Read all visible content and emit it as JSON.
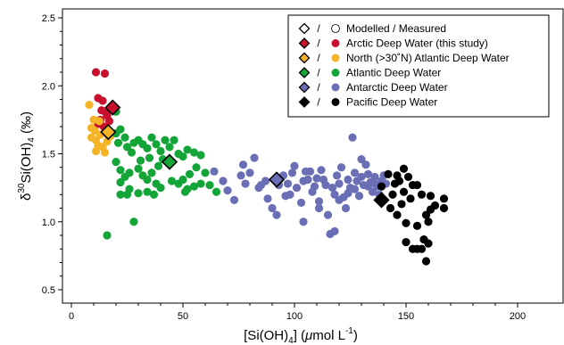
{
  "chart_data": {
    "type": "scatter",
    "xlabel": {
      "prefix": "[Si(OH)",
      "sub": "4",
      "mid": "] (",
      "italic": "μ",
      "unit": "mol L",
      "sup": "-1",
      "suffix": ")"
    },
    "ylabel": {
      "sup": "30",
      "main": "Si(OH)",
      "sub": "4",
      "suffix": " (‰)",
      "delta": "δ"
    },
    "xlim": [
      0,
      220
    ],
    "ylim": [
      0.45,
      2.55
    ],
    "x_ticks": [
      0,
      50,
      100,
      150,
      200
    ],
    "x_tick_labels": [
      "0",
      "50",
      "100",
      "150",
      "200"
    ],
    "y_ticks": [
      0.5,
      1.0,
      1.5,
      2.0,
      2.5
    ],
    "y_tick_labels": [
      "0.5",
      "1.0",
      "1.5",
      "2.0",
      "2.5"
    ],
    "grid": false,
    "legend_position": "top-right",
    "legend_header": {
      "sep": "/",
      "text": "Modelled / Measured"
    },
    "series": [
      {
        "name": "Arctic Deep Water (this study)",
        "color": "#c8102e",
        "modelled": [
          [
            18.5,
            1.84
          ]
        ],
        "measured": [
          [
            11,
            2.1
          ],
          [
            15,
            2.09
          ],
          [
            12,
            1.91
          ],
          [
            14,
            1.89
          ],
          [
            15.5,
            1.8
          ],
          [
            13,
            1.75
          ],
          [
            16,
            1.78
          ],
          [
            12,
            1.72
          ],
          [
            14.5,
            1.7
          ],
          [
            17,
            1.74
          ],
          [
            13.5,
            1.82
          ]
        ]
      },
      {
        "name": "North (>30˚N) Atlantic Deep Water",
        "color": "#f5b427",
        "modelled": [
          [
            16.5,
            1.66
          ]
        ],
        "measured": [
          [
            8,
            1.86
          ],
          [
            10,
            1.75
          ],
          [
            9,
            1.69
          ],
          [
            9,
            1.62
          ],
          [
            11,
            1.6
          ],
          [
            12,
            1.56
          ],
          [
            14,
            1.55
          ],
          [
            16,
            1.59
          ],
          [
            10.5,
            1.67
          ],
          [
            13,
            1.64
          ],
          [
            15,
            1.51
          ],
          [
            11,
            1.52
          ],
          [
            17.5,
            1.63
          ],
          [
            12.5,
            1.74
          ]
        ]
      },
      {
        "name": "Atlantic Deep Water",
        "color": "#14a538",
        "modelled": [
          [
            44,
            1.44
          ]
        ],
        "measured": [
          [
            16,
            0.9
          ],
          [
            20,
            1.81
          ],
          [
            22,
            1.68
          ],
          [
            20,
            1.65
          ],
          [
            21,
            1.58
          ],
          [
            24,
            1.62
          ],
          [
            25,
            1.55
          ],
          [
            27,
            1.51
          ],
          [
            28,
            1.58
          ],
          [
            30,
            1.6
          ],
          [
            32,
            1.57
          ],
          [
            34,
            1.54
          ],
          [
            36,
            1.62
          ],
          [
            38,
            1.57
          ],
          [
            40,
            1.52
          ],
          [
            42,
            1.6
          ],
          [
            44,
            1.55
          ],
          [
            46,
            1.6
          ],
          [
            48,
            1.5
          ],
          [
            50,
            1.48
          ],
          [
            52,
            1.53
          ],
          [
            55,
            1.51
          ],
          [
            58,
            1.49
          ],
          [
            20,
            1.44
          ],
          [
            22,
            1.38
          ],
          [
            24,
            1.33
          ],
          [
            26,
            1.36
          ],
          [
            30,
            1.39
          ],
          [
            32,
            1.34
          ],
          [
            34,
            1.31
          ],
          [
            36,
            1.36
          ],
          [
            38,
            1.28
          ],
          [
            40,
            1.25
          ],
          [
            45,
            1.3
          ],
          [
            48,
            1.28
          ],
          [
            50,
            1.31
          ],
          [
            52,
            1.24
          ],
          [
            55,
            1.26
          ],
          [
            58,
            1.28
          ],
          [
            62,
            1.27
          ],
          [
            65,
            1.22
          ],
          [
            22,
            1.29
          ],
          [
            26,
            1.24
          ],
          [
            30,
            1.21
          ],
          [
            34,
            1.22
          ],
          [
            37,
            1.2
          ],
          [
            22,
            1.2
          ],
          [
            25,
            1.2
          ],
          [
            28,
            1.0
          ],
          [
            31,
            1.45
          ],
          [
            35,
            1.47
          ],
          [
            39,
            1.41
          ],
          [
            41,
            1.46
          ],
          [
            51,
            1.22
          ],
          [
            56,
            1.4
          ],
          [
            60,
            1.36
          ],
          [
            53,
            1.35
          ]
        ]
      },
      {
        "name": "Antarctic Deep Water",
        "color": "#6a6fb5",
        "modelled": [
          [
            92,
            1.31
          ]
        ],
        "measured": [
          [
            64,
            1.37
          ],
          [
            68,
            1.3
          ],
          [
            70,
            1.23
          ],
          [
            73,
            1.16
          ],
          [
            77,
            1.42
          ],
          [
            80,
            1.36
          ],
          [
            82,
            1.47
          ],
          [
            85,
            1.27
          ],
          [
            87,
            1.3
          ],
          [
            88,
            1.17
          ],
          [
            90,
            1.1
          ],
          [
            92,
            1.05
          ],
          [
            95,
            1.34
          ],
          [
            97,
            1.28
          ],
          [
            98,
            1.2
          ],
          [
            100,
            1.41
          ],
          [
            101,
            1.25
          ],
          [
            103,
            1.14
          ],
          [
            105,
            1.37
          ],
          [
            106,
            1.31
          ],
          [
            108,
            1.22
          ],
          [
            110,
            1.32
          ],
          [
            111,
            1.15
          ],
          [
            112,
            1.38
          ],
          [
            114,
            1.27
          ],
          [
            115,
            1.05
          ],
          [
            116,
            0.91
          ],
          [
            118,
            1.2
          ],
          [
            119,
            1.34
          ],
          [
            120,
            1.28
          ],
          [
            121,
            1.4
          ],
          [
            122,
            1.18
          ],
          [
            123,
            1.1
          ],
          [
            124,
            1.31
          ],
          [
            125,
            1.25
          ],
          [
            126,
            1.62
          ],
          [
            127,
            1.36
          ],
          [
            128,
            1.3
          ],
          [
            129,
            1.19
          ],
          [
            130,
            1.46
          ],
          [
            131,
            1.27
          ],
          [
            132,
            1.42
          ],
          [
            133,
            1.35
          ],
          [
            134,
            1.29
          ],
          [
            135,
            1.22
          ],
          [
            136,
            1.33
          ],
          [
            137,
            1.26
          ],
          [
            138,
            1.2
          ],
          [
            139,
            1.3
          ],
          [
            140,
            1.34
          ],
          [
            141,
            1.28
          ],
          [
            76,
            1.34
          ],
          [
            78,
            1.28
          ],
          [
            84,
            1.25
          ],
          [
            93,
            1.27
          ],
          [
            99,
            1.36
          ],
          [
            104,
            1.3
          ],
          [
            107,
            1.37
          ],
          [
            109,
            1.26
          ],
          [
            113,
            1.31
          ],
          [
            117,
            1.25
          ],
          [
            120,
            1.16
          ],
          [
            124,
            1.21
          ],
          [
            127,
            1.24
          ],
          [
            130,
            1.33
          ],
          [
            133,
            1.26
          ],
          [
            136,
            1.28
          ],
          [
            104,
            1.0
          ],
          [
            111,
            1.1
          ],
          [
            118,
            0.93
          ],
          [
            96,
            1.19
          ]
        ]
      },
      {
        "name": "Pacific Deep Water",
        "color": "#000000",
        "modelled": [
          [
            139,
            1.16
          ]
        ],
        "measured": [
          [
            142,
            1.35
          ],
          [
            146,
            1.34
          ],
          [
            149,
            1.39
          ],
          [
            151,
            1.33
          ],
          [
            153,
            1.27
          ],
          [
            155,
            1.27
          ],
          [
            157,
            1.2
          ],
          [
            145,
            1.28
          ],
          [
            139,
            1.26
          ],
          [
            144,
            1.2
          ],
          [
            148,
            1.13
          ],
          [
            146,
            1.05
          ],
          [
            150,
            0.99
          ],
          [
            155,
            0.97
          ],
          [
            159,
            1.05
          ],
          [
            161,
            1.09
          ],
          [
            160,
            1.0
          ],
          [
            158,
            0.87
          ],
          [
            160,
            0.84
          ],
          [
            153,
            0.8
          ],
          [
            155,
            0.8
          ],
          [
            150,
            0.85
          ],
          [
            157,
            0.8
          ],
          [
            159,
            0.71
          ],
          [
            161,
            1.19
          ],
          [
            163,
            1.12
          ],
          [
            167,
            1.17
          ],
          [
            167,
            1.1
          ],
          [
            149,
            1.22
          ],
          [
            143,
            1.1
          ],
          [
            147,
            1.3
          ],
          [
            152,
            1.17
          ]
        ]
      }
    ]
  }
}
